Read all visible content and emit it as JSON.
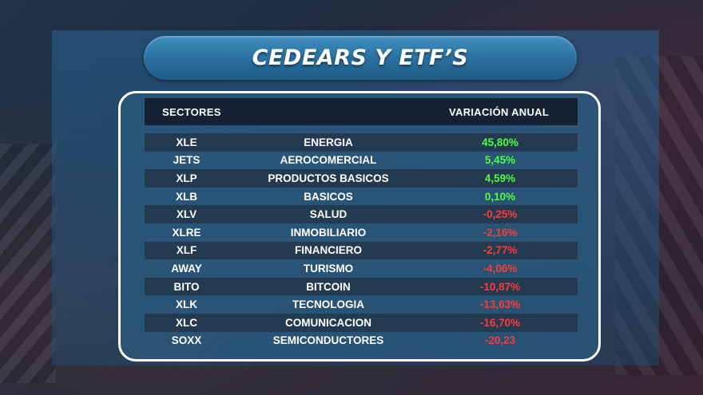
{
  "title": "CEDEARS Y ETF’S",
  "header": {
    "sectores": "SECTORES",
    "variacion": "VARIACIÓN ANUAL"
  },
  "colors": {
    "positive": "#4cff3a",
    "negative": "#ff3a3a"
  },
  "rows": [
    {
      "ticker": "XLE",
      "sector": "ENERGIA",
      "variacion": "45,80%",
      "sign": "pos"
    },
    {
      "ticker": "JETS",
      "sector": "AEROCOMERCIAL",
      "variacion": "5,45%",
      "sign": "pos"
    },
    {
      "ticker": "XLP",
      "sector": "PRODUCTOS BASICOS",
      "variacion": "4,59%",
      "sign": "pos"
    },
    {
      "ticker": "XLB",
      "sector": "BASICOS",
      "variacion": "0,10%",
      "sign": "pos"
    },
    {
      "ticker": "XLV",
      "sector": "SALUD",
      "variacion": "-0,25%",
      "sign": "neg"
    },
    {
      "ticker": "XLRE",
      "sector": "INMOBILIARIO",
      "variacion": "-2,16%",
      "sign": "neg"
    },
    {
      "ticker": "XLF",
      "sector": "FINANCIERO",
      "variacion": "-2,77%",
      "sign": "neg"
    },
    {
      "ticker": "AWAY",
      "sector": "TURISMO",
      "variacion": "-4,06%",
      "sign": "neg"
    },
    {
      "ticker": "BITO",
      "sector": "BITCOIN",
      "variacion": "-10,87%",
      "sign": "neg"
    },
    {
      "ticker": "XLK",
      "sector": "TECNOLOGIA",
      "variacion": "-13,63%",
      "sign": "neg"
    },
    {
      "ticker": "XLC",
      "sector": "COMUNICACION",
      "variacion": "-16,70%",
      "sign": "neg"
    },
    {
      "ticker": "SOXX",
      "sector": "SEMICONDUCTORES",
      "variacion": "-20,23",
      "sign": "neg"
    }
  ]
}
